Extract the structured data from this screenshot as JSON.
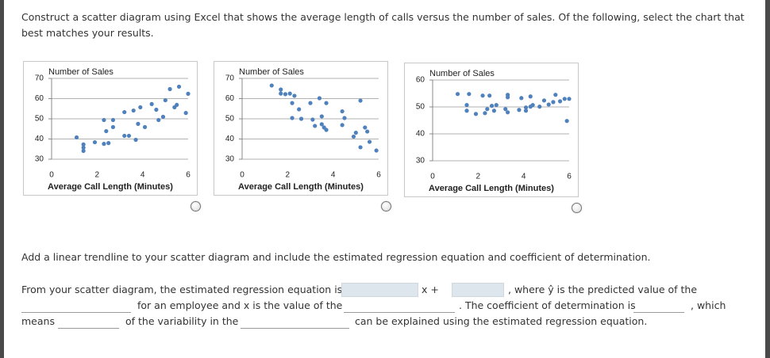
{
  "question": "Construct a scatter diagram using Excel that shows the average length of calls versus the number of sales. Of the following, select the chart that best matches your results.",
  "chart_data": [
    {
      "type": "scatter",
      "title": "Number of Sales",
      "x_label": "Average Call Length (Minutes)",
      "color": "#4f81bd",
      "grid": true,
      "xlim": [
        0,
        6
      ],
      "ylim": [
        30,
        70
      ],
      "xticks": [
        0,
        2,
        4,
        6
      ],
      "yticks": [
        30,
        40,
        50,
        60,
        70
      ],
      "x": [
        1.1,
        1.4,
        1.4,
        1.4,
        1.9,
        2.3,
        2.5,
        2.3,
        2.7,
        2.4,
        2.7,
        3.2,
        3.4,
        3.7,
        3.2,
        3.6,
        3.8,
        3.9,
        4.1,
        4.4,
        4.7,
        4.9,
        4.6,
        5.0,
        5.2,
        5.4,
        5.5,
        5.6,
        5.9,
        6.0
      ],
      "y": [
        40.8,
        37.3,
        35.7,
        34.1,
        38.4,
        37.6,
        38.0,
        49.4,
        49.4,
        43.9,
        45.9,
        41.6,
        41.6,
        39.6,
        53.3,
        54.1,
        47.5,
        55.7,
        45.9,
        57.3,
        49.4,
        51.0,
        54.5,
        59.2,
        64.7,
        55.7,
        56.9,
        65.9,
        52.9,
        62.4
      ]
    },
    {
      "type": "scatter",
      "title": "Number of Sales",
      "x_label": "Average Call Length (Minutes)",
      "color": "#4f81bd",
      "grid": true,
      "xlim": [
        0,
        6
      ],
      "ylim": [
        30,
        70
      ],
      "xticks": [
        0,
        2,
        4,
        6
      ],
      "yticks": [
        30,
        40,
        50,
        60,
        70
      ],
      "x": [
        1.3,
        1.7,
        1.7,
        1.9,
        2.1,
        2.3,
        2.2,
        2.5,
        2.2,
        2.6,
        3.0,
        3.1,
        3.2,
        3.4,
        3.5,
        3.5,
        3.6,
        3.7,
        3.7,
        4.4,
        4.4,
        4.5,
        4.9,
        5.0,
        5.2,
        5.2,
        5.4,
        5.5,
        5.6,
        5.9
      ],
      "y": [
        66.5,
        62.5,
        64.5,
        62.2,
        62.5,
        61.4,
        57.8,
        54.7,
        50.4,
        50.0,
        57.8,
        49.6,
        46.5,
        60.2,
        51.2,
        47.3,
        45.7,
        57.8,
        44.5,
        46.9,
        53.7,
        50.4,
        41.2,
        43.1,
        59.0,
        35.9,
        45.7,
        43.7,
        38.6,
        34.3
      ]
    },
    {
      "type": "scatter",
      "title": "Number of Sales",
      "x_label": "Average Call Length (Minutes)",
      "color": "#4f81bd",
      "grid": true,
      "xlim": [
        0,
        6
      ],
      "ylim": [
        30,
        60
      ],
      "xticks": [
        0,
        2,
        4,
        6
      ],
      "yticks": [
        30,
        40,
        50,
        60
      ],
      "x": [
        1.1,
        1.6,
        1.5,
        1.5,
        1.9,
        2.2,
        2.4,
        2.3,
        2.5,
        2.6,
        2.7,
        2.8,
        3.3,
        3.3,
        3.2,
        3.3,
        3.8,
        3.9,
        4.1,
        4.1,
        4.3,
        4.4,
        4.3,
        4.7,
        4.9,
        5.1,
        5.3,
        5.4,
        5.6,
        5.9,
        5.8,
        6.0
      ],
      "y": [
        54.8,
        54.8,
        50.7,
        48.6,
        47.4,
        54.2,
        49.2,
        47.7,
        54.2,
        50.4,
        48.6,
        50.7,
        54.5,
        53.6,
        49.2,
        48.0,
        48.9,
        53.3,
        48.6,
        49.8,
        50.1,
        50.7,
        53.9,
        50.1,
        52.4,
        50.9,
        51.8,
        54.5,
        52.1,
        44.8,
        53.0,
        53.0
      ]
    }
  ],
  "instruction": "Add a linear trendline to your scatter diagram and include the estimated regression equation and coefficient of determination.",
  "sentence": [
    "From your scatter diagram, the estimated regression equation is ŷ =",
    "x +",
    ", where ŷ is the predicted value of the",
    "for an employee and x is the value of the",
    ". The coefficient of determination is",
    ", which",
    "means",
    "of the variability in the",
    "can be explained using the estimated regression equation."
  ]
}
